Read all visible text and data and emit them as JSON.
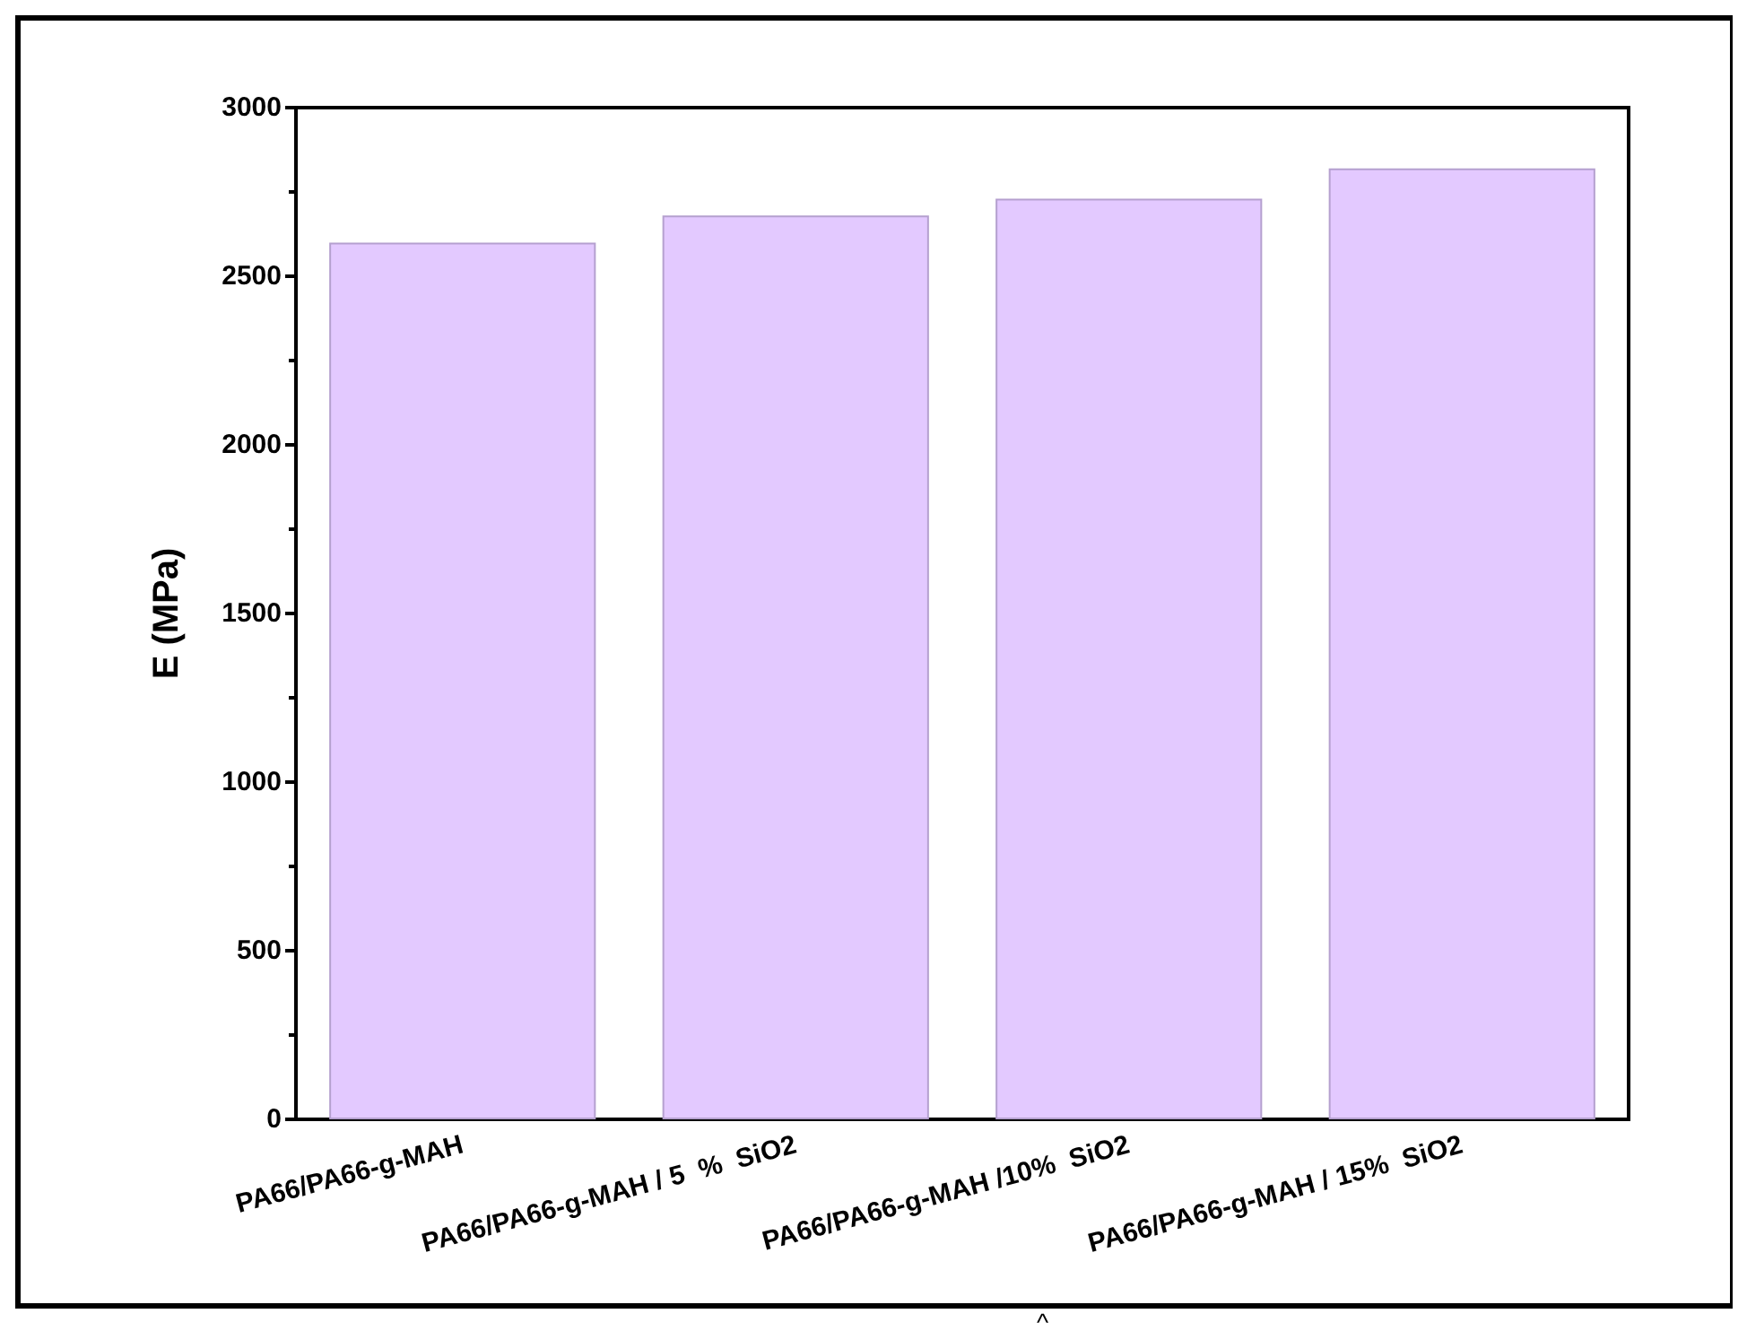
{
  "chart_data": {
    "type": "bar",
    "ylabel": "E (MPa)",
    "categories": [
      "PA66/PA66-g-MAH",
      "PA66/PA66-g-MAH / 5  %  SiO2",
      "PA66/PA66-g-MAH /10%  SiO2",
      "PA66/PA66-g-MAH / 15%  SiO2"
    ],
    "values": [
      2600,
      2680,
      2730,
      2820
    ],
    "color": "#e3c9ff",
    "ylim": [
      0,
      3000
    ],
    "yticks": [
      0,
      500,
      1000,
      1500,
      2000,
      2500,
      3000
    ],
    "grid": false,
    "annotations": [
      "^"
    ]
  }
}
